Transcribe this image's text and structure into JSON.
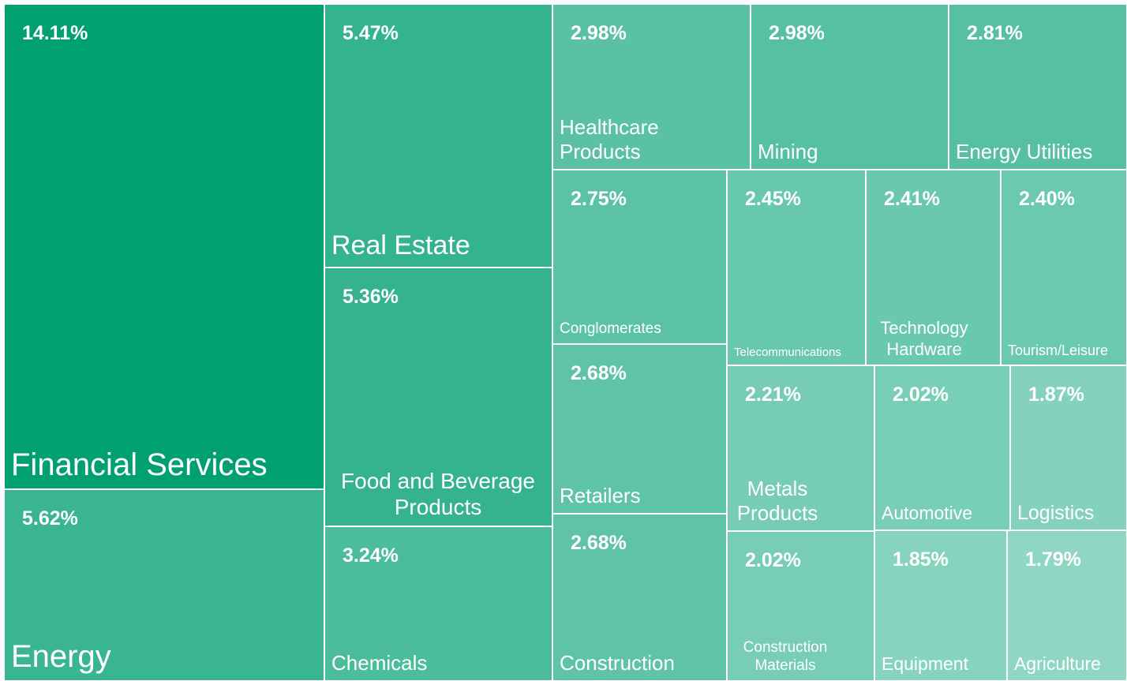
{
  "chart_data": {
    "type": "treemap",
    "categories": [
      "Financial Services",
      "Energy",
      "Real Estate",
      "Food and Beverage Products",
      "Chemicals",
      "Healthcare Products",
      "Mining",
      "Energy Utilities",
      "Conglomerates",
      "Telecommunications",
      "Technology Hardware",
      "Tourism/Leisure",
      "Retailers",
      "Construction",
      "Metals Products",
      "Automotive",
      "Logistics",
      "Construction Materials",
      "Equipment",
      "Agriculture"
    ],
    "values": [
      14.11,
      5.62,
      5.47,
      5.36,
      3.24,
      2.98,
      2.98,
      2.81,
      2.75,
      2.45,
      2.41,
      2.4,
      2.68,
      2.68,
      2.21,
      2.02,
      1.87,
      2.02,
      1.85,
      1.79
    ],
    "value_labels": [
      "14.11%",
      "5.62%",
      "5.47%",
      "5.36%",
      "3.24%",
      "2.98%",
      "2.98%",
      "2.81%",
      "2.75%",
      "2.45%",
      "2.41%",
      "2.40%",
      "2.68%",
      "2.68%",
      "2.21%",
      "2.02%",
      "1.87%",
      "2.02%",
      "1.85%",
      "1.79%"
    ],
    "colors": [
      "#00a070",
      "#3ab591",
      "#34b38f",
      "#35b38f",
      "#4bbd9a",
      "#5ac1a4",
      "#56c0a3",
      "#57c0a3",
      "#5cc2a6",
      "#68c8ae",
      "#69c8ae",
      "#6ac9af",
      "#5fc3a7",
      "#5fc3a7",
      "#76cdb4",
      "#79ceb6",
      "#84d2bd",
      "#77cdb5",
      "#86d3be",
      "#90d7c3"
    ]
  }
}
